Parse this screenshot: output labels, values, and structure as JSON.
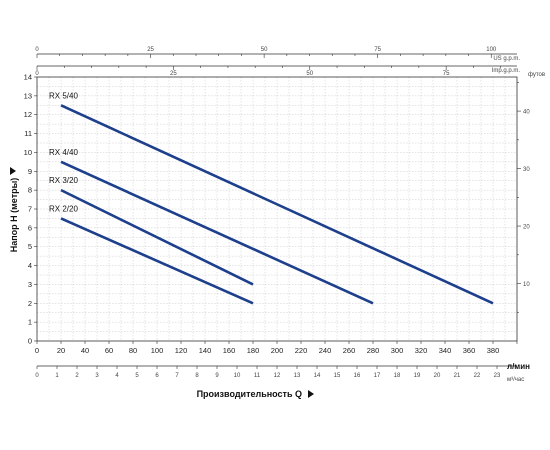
{
  "chart_data": {
    "type": "line",
    "title": "",
    "xlabel": "Производительность Q",
    "ylabel": "Напор H (метры)",
    "xunit": "л/мин",
    "x2unit": "м³/час",
    "x3unit": "US g.p.m.",
    "x4unit": "Imp.g.p.m.",
    "y2unit": "футов",
    "xlim": [
      0,
      400
    ],
    "ylim": [
      0,
      14
    ],
    "grid": true,
    "x_ticks": [
      "0",
      "20",
      "40",
      "60",
      "80",
      "100",
      "120",
      "140",
      "160",
      "180",
      "200",
      "220",
      "240",
      "260",
      "280",
      "300",
      "320",
      "340",
      "360",
      "380"
    ],
    "x_m3h_ticks": [
      "0",
      "1",
      "2",
      "3",
      "4",
      "5",
      "6",
      "7",
      "8",
      "9",
      "10",
      "11",
      "12",
      "13",
      "14",
      "15",
      "16",
      "17",
      "18",
      "19",
      "20",
      "21",
      "22",
      "23"
    ],
    "x_usgpm_ticks": [
      "0",
      "25",
      "50",
      "75",
      "100"
    ],
    "x_impgpm_ticks": [
      "0",
      "25",
      "50",
      "75"
    ],
    "y_ticks": [
      "0",
      "1",
      "2",
      "3",
      "4",
      "5",
      "6",
      "7",
      "8",
      "9",
      "10",
      "11",
      "12",
      "13",
      "14"
    ],
    "y_feet_ticks": [
      "10",
      "20",
      "30",
      "40"
    ],
    "series": [
      {
        "name": "RX 5/40",
        "x": [
          20,
          380
        ],
        "y": [
          12.5,
          2.0
        ]
      },
      {
        "name": "RX 4/40",
        "x": [
          20,
          280
        ],
        "y": [
          9.5,
          2.0
        ]
      },
      {
        "name": "RX 3/20",
        "x": [
          20,
          180
        ],
        "y": [
          8.0,
          3.0
        ]
      },
      {
        "name": "RX 2/20",
        "x": [
          20,
          180
        ],
        "y": [
          6.5,
          2.0
        ]
      }
    ],
    "colors": {
      "curve": "#1d3f8c",
      "grid": "#c8c8c8",
      "axis": "#333333"
    }
  }
}
